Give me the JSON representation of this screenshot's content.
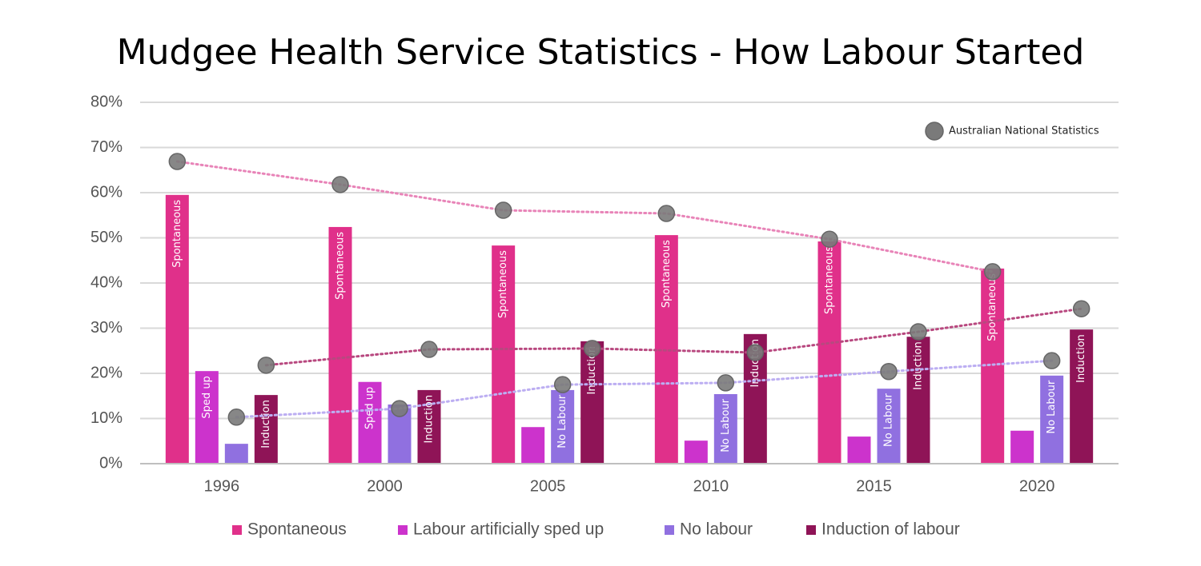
{
  "chart_data": {
    "type": "bar",
    "title": "Mudgee Health Service Statistics  - How Labour Started",
    "categories": [
      "1996",
      "2000",
      "2005",
      "2010",
      "2015",
      "2020"
    ],
    "ylim": [
      0,
      80
    ],
    "yticks": [
      {
        "value": 0,
        "label": "0%"
      },
      {
        "value": 10,
        "label": "10%"
      },
      {
        "value": 20,
        "label": "20%"
      },
      {
        "value": 30,
        "label": "30%"
      },
      {
        "value": 40,
        "label": "40%"
      },
      {
        "value": 50,
        "label": "50%"
      },
      {
        "value": 60,
        "label": "60%"
      },
      {
        "value": 70,
        "label": "70%"
      },
      {
        "value": 80,
        "label": "80%"
      }
    ],
    "grid": true,
    "national_label": "Australian National Statistics",
    "national_marker_color": "#7a7a7a",
    "series": [
      {
        "name": "Spontaneous",
        "color": "#e0308a",
        "values": [
          59.5,
          52.4,
          48.3,
          50.6,
          49.2,
          43.2
        ],
        "bar_labels": [
          "Spontaneous",
          "Spontaneous",
          "Spontaneous",
          "Spontaneous",
          "Spontaneous",
          "Spontaneous"
        ],
        "national": [
          66.9,
          61.8,
          56.1,
          55.4,
          49.7,
          42.5
        ],
        "national_line_color": "#e884b8"
      },
      {
        "name": "Labour artificially sped up",
        "color": "#cc33cc",
        "values": [
          20.5,
          18.1,
          8.1,
          5.1,
          6.0,
          7.3
        ],
        "bar_labels": [
          "Sped up",
          "Sped up",
          null,
          null,
          null,
          null
        ]
      },
      {
        "name": "No labour",
        "color": "#9070e0",
        "values": [
          4.4,
          13.1,
          16.3,
          15.4,
          16.6,
          19.5
        ],
        "bar_labels": [
          null,
          null,
          "No Labour",
          "No Labour",
          "No Labour",
          "No Labour"
        ],
        "national": [
          10.3,
          12.2,
          17.5,
          17.9,
          20.4,
          22.8
        ],
        "national_line_color": "#bcaef2"
      },
      {
        "name": "Induction of labour",
        "color": "#8f1457",
        "values": [
          15.2,
          16.3,
          27.1,
          28.7,
          28.1,
          29.7
        ],
        "bar_labels": [
          "Induction",
          "Induction",
          "Induction",
          "Induction",
          "Induction",
          "Induction"
        ],
        "national": [
          21.8,
          25.3,
          25.5,
          24.6,
          29.2,
          34.3
        ],
        "national_line_color": "#b8487f"
      }
    ]
  }
}
